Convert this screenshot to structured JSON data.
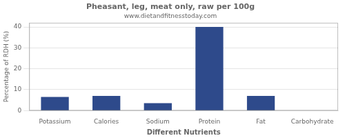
{
  "chart_data": {
    "type": "bar",
    "title": "Pheasant, leg, meat only, raw per 100g",
    "subtitle": "www.dietandfitnesstoday.com",
    "xlabel": "Different Nutrients",
    "ylabel": "Percentage of RDH (%)",
    "categories": [
      "Potassium",
      "Calories",
      "Sodium",
      "Protein",
      "Fat",
      "Carbohydrate"
    ],
    "values": [
      6.5,
      7.0,
      3.5,
      40.0,
      7.0,
      0.0
    ],
    "color": "#2E4A8B",
    "ylim": [
      0,
      42
    ],
    "yticks": [
      0,
      10,
      20,
      30,
      40
    ],
    "grid": true
  }
}
